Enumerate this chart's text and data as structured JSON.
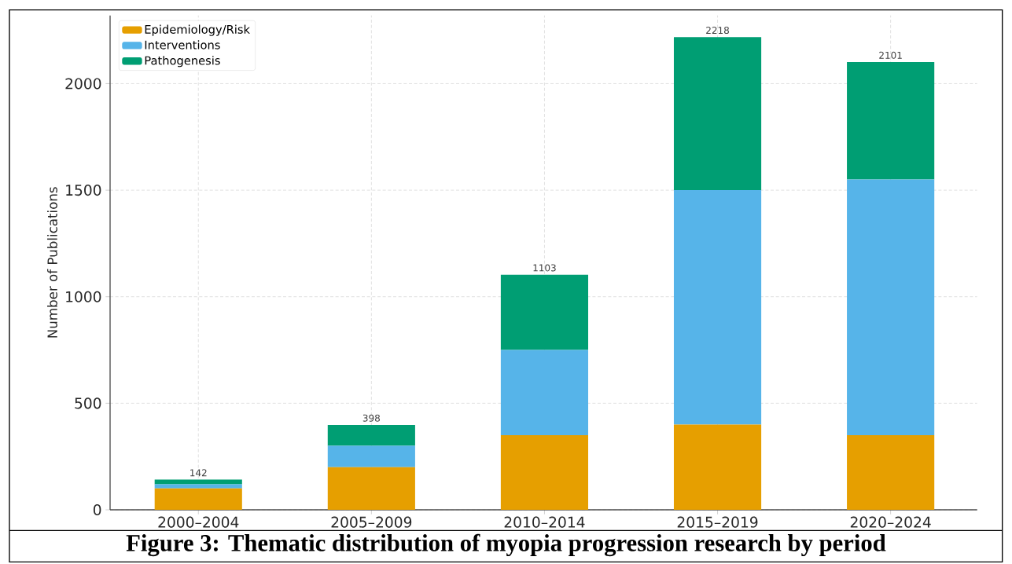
{
  "chart_data": {
    "type": "bar",
    "stacked": true,
    "ylabel": "Number of Publications",
    "categories": [
      "2000–2004",
      "2005–2009",
      "2010–2014",
      "2015–2019",
      "2020–2024"
    ],
    "series": [
      {
        "name": "Epidemiology/Risk",
        "color": "#e69f00",
        "values": [
          100,
          200,
          350,
          400,
          350
        ]
      },
      {
        "name": "Interventions",
        "color": "#56b4e9",
        "values": [
          20,
          100,
          400,
          1100,
          1200
        ]
      },
      {
        "name": "Pathogenesis",
        "color": "#009e73",
        "values": [
          22,
          98,
          353,
          718,
          551
        ]
      }
    ],
    "totals": [
      "142",
      "398",
      "1103",
      "2218",
      "2101"
    ],
    "ylim": [
      0,
      2320
    ],
    "yticks": [
      0,
      500,
      1000,
      1500,
      2000
    ],
    "grid": true,
    "legend": "top left",
    "annotations": [
      "Figure 3: Thematic distribution of myopia progression research by period"
    ]
  }
}
